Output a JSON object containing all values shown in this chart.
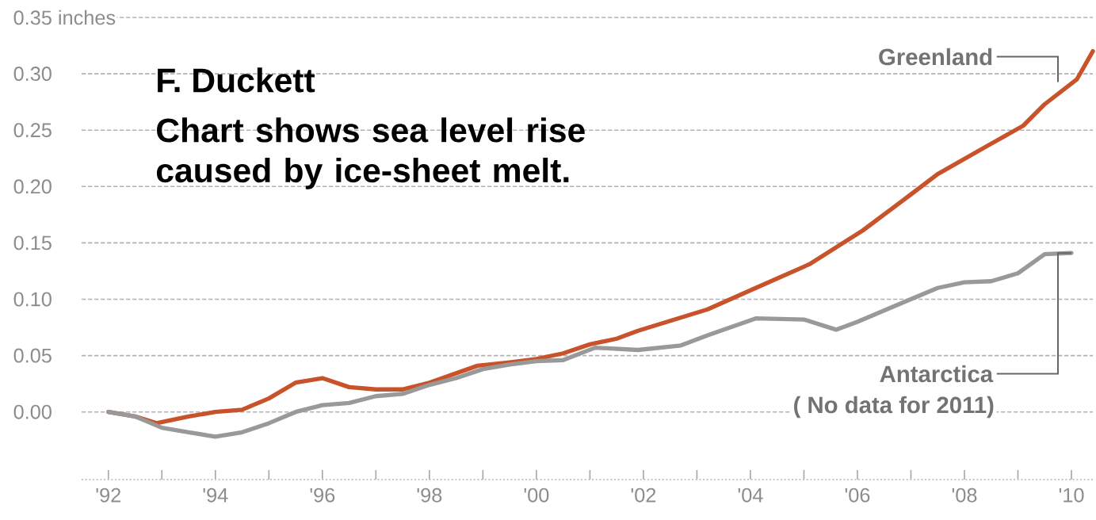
{
  "chart_data": {
    "type": "line",
    "annotations": [
      "F. Duckett",
      "Chart shows sea level rise caused by ice-sheet melt.",
      {
        "text": "( No data for 2011)",
        "x": 2010.0,
        "y": 0.141
      }
    ],
    "series": [
      {
        "name": "Greenland",
        "color": "#c8522a",
        "x": [
          1992.0,
          1992.5,
          1992.9,
          1993.5,
          1994.0,
          1994.5,
          1995.0,
          1995.5,
          1996.0,
          1996.5,
          1997.0,
          1997.5,
          1998.0,
          1998.9,
          1999.5,
          2000.0,
          2000.5,
          2001.0,
          2001.5,
          2001.9,
          2003.2,
          2004.1,
          2005.1,
          2006.1,
          2007.0,
          2007.5,
          2008.5,
          2009.1,
          2009.5,
          2010.1,
          2010.4
        ],
        "values": [
          0.0,
          -0.004,
          -0.01,
          -0.004,
          0.0,
          0.002,
          0.012,
          0.026,
          0.03,
          0.022,
          0.02,
          0.02,
          0.026,
          0.041,
          0.044,
          0.047,
          0.052,
          0.06,
          0.065,
          0.072,
          0.091,
          0.11,
          0.131,
          0.161,
          0.193,
          0.211,
          0.238,
          0.254,
          0.273,
          0.295,
          0.32
        ]
      },
      {
        "name": "Antarctica",
        "color": "#999999",
        "x": [
          1992.0,
          1992.5,
          1993.0,
          1993.5,
          1994.0,
          1994.5,
          1995.0,
          1995.5,
          1996.0,
          1996.5,
          1997.0,
          1997.5,
          1998.0,
          1998.5,
          1999.0,
          1999.5,
          2000.0,
          2000.5,
          2001.1,
          2001.9,
          2002.7,
          2003.2,
          2004.1,
          2005.0,
          2005.6,
          2006.0,
          2006.9,
          2007.5,
          2008.0,
          2008.5,
          2009.0,
          2009.5,
          2010.0
        ],
        "values": [
          0.0,
          -0.004,
          -0.014,
          -0.018,
          -0.022,
          -0.018,
          -0.01,
          0.0,
          0.006,
          0.008,
          0.014,
          0.016,
          0.024,
          0.03,
          0.038,
          0.042,
          0.045,
          0.046,
          0.057,
          0.055,
          0.059,
          0.068,
          0.083,
          0.082,
          0.073,
          0.08,
          0.098,
          0.11,
          0.115,
          0.116,
          0.123,
          0.14,
          0.141
        ]
      }
    ],
    "xlim": [
      1991.5,
      2010.4
    ],
    "xticks": [
      {
        "value": 1992,
        "label": "'92"
      },
      {
        "value": 1993,
        "label": null
      },
      {
        "value": 1994,
        "label": "'94"
      },
      {
        "value": 1995,
        "label": null
      },
      {
        "value": 1996,
        "label": "'96"
      },
      {
        "value": 1997,
        "label": null
      },
      {
        "value": 1998,
        "label": "'98"
      },
      {
        "value": 1999,
        "label": null
      },
      {
        "value": 2000,
        "label": "'00"
      },
      {
        "value": 2001,
        "label": null
      },
      {
        "value": 2002,
        "label": "'02"
      },
      {
        "value": 2003,
        "label": null
      },
      {
        "value": 2004,
        "label": "'04"
      },
      {
        "value": 2005,
        "label": null
      },
      {
        "value": 2006,
        "label": "'06"
      },
      {
        "value": 2007,
        "label": null
      },
      {
        "value": 2008,
        "label": "'08"
      },
      {
        "value": 2009,
        "label": null
      },
      {
        "value": 2010,
        "label": "'10"
      }
    ],
    "ylim": [
      -0.06,
      0.35
    ],
    "yticks": [
      {
        "value": 0,
        "label": "0.00"
      },
      {
        "value": 0.05,
        "label": "0.05"
      },
      {
        "value": 0.1,
        "label": "0.10"
      },
      {
        "value": 0.15,
        "label": "0.15"
      },
      {
        "value": 0.2,
        "label": "0.20"
      },
      {
        "value": 0.25,
        "label": "0.25"
      },
      {
        "value": 0.3,
        "label": "0.30"
      },
      {
        "value": 0.35,
        "label": "0.35 inches"
      }
    ],
    "grid": "y",
    "legend": false,
    "marker": "none",
    "line_style": "solid"
  }
}
